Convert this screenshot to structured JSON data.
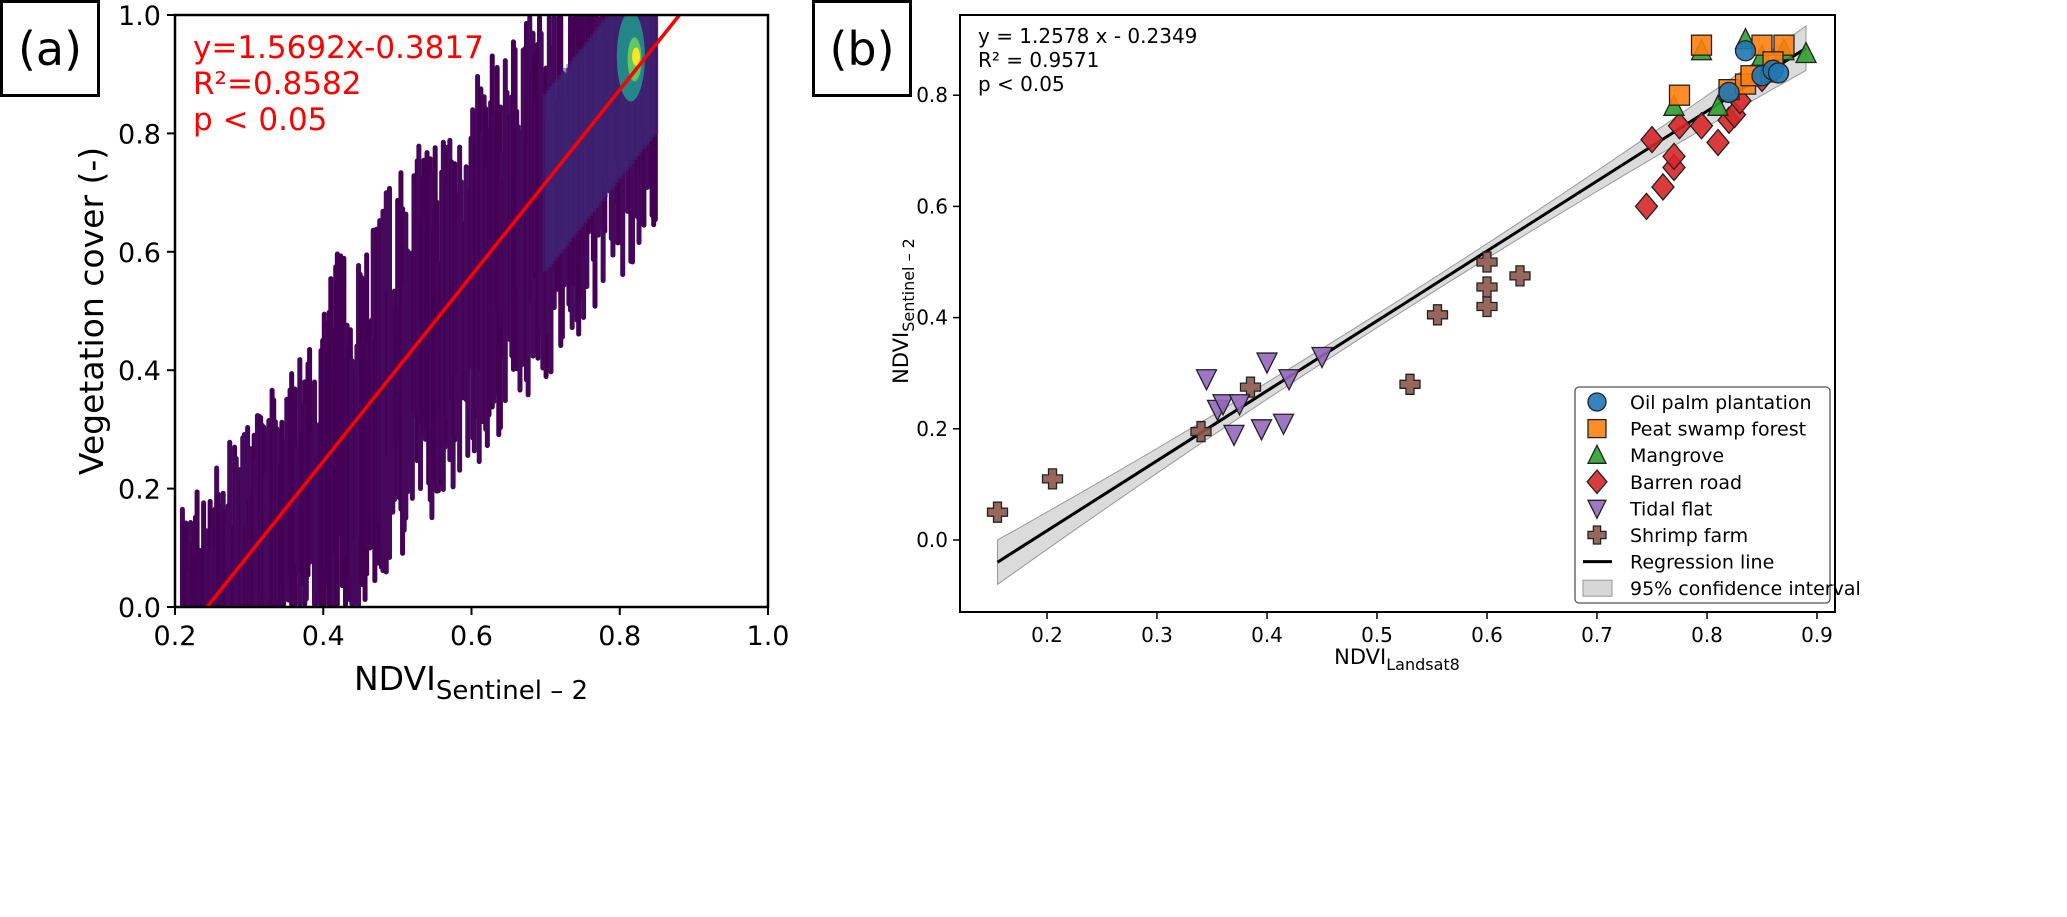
{
  "chart_data": [
    {
      "panel_label": "(a)",
      "type": "scatter",
      "style": "density scatter (viridis colormap, vertical streaks)",
      "xlabel_main": "NDVI",
      "xlabel_sub": "Sentinel – 2",
      "ylabel": "Vegetation cover (-)",
      "xlim": [
        0.2,
        1.0
      ],
      "ylim": [
        0.0,
        1.0
      ],
      "xticks": [
        "0.2",
        "0.4",
        "0.6",
        "0.8",
        "1.0"
      ],
      "yticks": [
        "0.0",
        "0.2",
        "0.4",
        "0.6",
        "0.8",
        "1.0"
      ],
      "regression": {
        "slope": 1.5692,
        "intercept": -0.3817,
        "color": "#ff0000"
      },
      "annotations": [
        "y=1.5692x-0.3817",
        "R²=0.8582",
        "p < 0.05"
      ],
      "point_cloud": {
        "x_range": [
          0.21,
          0.85
        ],
        "spread": 0.28,
        "hotspot": [
          0.82,
          0.93
        ]
      },
      "colors": {
        "low": "#440154",
        "mid": "#31688e",
        "high": "#fde725"
      }
    },
    {
      "panel_label": "(b)",
      "type": "scatter",
      "xlabel_main": "NDVI",
      "xlabel_sub": "Landsat8",
      "ylabel_main": "NDVI",
      "ylabel_sub": "Sentinel – 2",
      "xlim": [
        0.12,
        0.92
      ],
      "ylim": [
        -0.13,
        0.97
      ],
      "xticks": [
        "0.2",
        "0.3",
        "0.4",
        "0.5",
        "0.6",
        "0.7",
        "0.8",
        "0.9"
      ],
      "yticks": [
        "0.0",
        "0.2",
        "0.4",
        "0.6",
        "0.8"
      ],
      "annotations": [
        "y = 1.2578 x - 0.2349",
        "R² = 0.9571",
        "p < 0.05"
      ],
      "regression": {
        "slope": 1.2578,
        "intercept": -0.2349,
        "x_range": [
          0.155,
          0.89
        ],
        "ci_halfwidth_ends": 0.04,
        "ci_halfwidth_mid": 0.012
      },
      "legend_position": "lower-right",
      "series": [
        {
          "name": "Oil palm plantation",
          "marker": "circle",
          "color": "#1f77b4",
          "points": [
            [
              0.82,
              0.805
            ],
            [
              0.835,
              0.88
            ],
            [
              0.85,
              0.835
            ],
            [
              0.86,
              0.845
            ],
            [
              0.865,
              0.84
            ]
          ]
        },
        {
          "name": "Peat swamp forest",
          "marker": "square",
          "color": "#ff7f0e",
          "points": [
            [
              0.775,
              0.8
            ],
            [
              0.795,
              0.89
            ],
            [
              0.82,
              0.81
            ],
            [
              0.835,
              0.82
            ],
            [
              0.84,
              0.835
            ],
            [
              0.85,
              0.89
            ],
            [
              0.87,
              0.89
            ],
            [
              0.86,
              0.86
            ]
          ]
        },
        {
          "name": "Mangrove",
          "marker": "triangle-up",
          "color": "#2ca02c",
          "points": [
            [
              0.77,
              0.78
            ],
            [
              0.795,
              0.88
            ],
            [
              0.81,
              0.78
            ],
            [
              0.835,
              0.9
            ],
            [
              0.85,
              0.87
            ],
            [
              0.87,
              0.88
            ],
            [
              0.89,
              0.875
            ],
            [
              0.855,
              0.84
            ]
          ]
        },
        {
          "name": "Barren road",
          "marker": "diamond",
          "color": "#d62728",
          "points": [
            [
              0.745,
              0.6
            ],
            [
              0.75,
              0.72
            ],
            [
              0.76,
              0.635
            ],
            [
              0.77,
              0.67
            ],
            [
              0.77,
              0.69
            ],
            [
              0.775,
              0.745
            ],
            [
              0.795,
              0.745
            ],
            [
              0.81,
              0.715
            ],
            [
              0.82,
              0.755
            ],
            [
              0.825,
              0.765
            ],
            [
              0.83,
              0.79
            ],
            [
              0.85,
              0.83
            ]
          ]
        },
        {
          "name": "Tidal flat",
          "marker": "triangle-down",
          "color": "#9467bd",
          "points": [
            [
              0.345,
              0.29
            ],
            [
              0.355,
              0.235
            ],
            [
              0.36,
              0.245
            ],
            [
              0.37,
              0.19
            ],
            [
              0.375,
              0.245
            ],
            [
              0.395,
              0.2
            ],
            [
              0.4,
              0.32
            ],
            [
              0.415,
              0.21
            ],
            [
              0.42,
              0.29
            ],
            [
              0.45,
              0.33
            ]
          ]
        },
        {
          "name": "Shrimp farm",
          "marker": "plus",
          "color": "#8c564b",
          "points": [
            [
              0.155,
              0.05
            ],
            [
              0.205,
              0.11
            ],
            [
              0.34,
              0.195
            ],
            [
              0.385,
              0.275
            ],
            [
              0.53,
              0.28
            ],
            [
              0.555,
              0.405
            ],
            [
              0.6,
              0.42
            ],
            [
              0.6,
              0.455
            ],
            [
              0.6,
              0.5
            ],
            [
              0.63,
              0.475
            ]
          ]
        }
      ],
      "legend_extra": [
        "Regression line",
        "95% confidence interval"
      ]
    }
  ]
}
